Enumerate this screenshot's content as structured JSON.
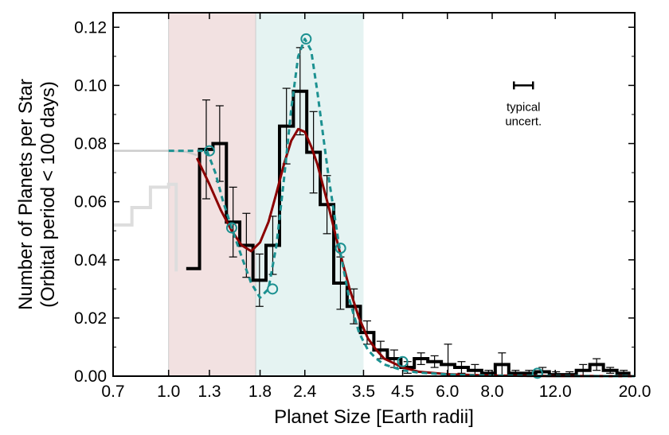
{
  "chart_data": {
    "type": "line",
    "title": "",
    "xlabel": "Planet Size [Earth radii]",
    "ylabel_lines": [
      "Number of Planets per Star",
      "(Orbital period < 100 days)"
    ],
    "x_scale": "log",
    "xlim": [
      0.7,
      20.0
    ],
    "ylim": [
      0.0,
      0.125
    ],
    "x_ticks": [
      {
        "value": 0.7,
        "label": "0.7"
      },
      {
        "value": 1.0,
        "label": "1.0"
      },
      {
        "value": 1.3,
        "label": "1.3"
      },
      {
        "value": 1.8,
        "label": "1.8"
      },
      {
        "value": 2.4,
        "label": "2.4"
      },
      {
        "value": 3.5,
        "label": "3.5"
      },
      {
        "value": 4.5,
        "label": "4.5"
      },
      {
        "value": 6.0,
        "label": "6.0"
      },
      {
        "value": 8.0,
        "label": "8.0"
      },
      {
        "value": 12.0,
        "label": "12.0"
      },
      {
        "value": 20.0,
        "label": "20.0"
      }
    ],
    "y_ticks": [
      {
        "value": 0.0,
        "label": "0.00"
      },
      {
        "value": 0.02,
        "label": "0.02"
      },
      {
        "value": 0.04,
        "label": "0.04"
      },
      {
        "value": 0.06,
        "label": "0.06"
      },
      {
        "value": 0.08,
        "label": "0.08"
      },
      {
        "value": 0.1,
        "label": "0.10"
      },
      {
        "value": 0.12,
        "label": "0.12"
      }
    ],
    "grid": false,
    "shaded_regions": [
      {
        "x0": 1.0,
        "x1": 1.75,
        "color": "#f2e1e1"
      },
      {
        "x0": 1.75,
        "x1": 3.5,
        "color": "#e5f3f2"
      }
    ],
    "histogram": {
      "color": "#000000",
      "edges": [
        1.12,
        1.22,
        1.33,
        1.45,
        1.58,
        1.72,
        1.87,
        2.04,
        2.23,
        2.43,
        2.65,
        2.89,
        3.15,
        3.43,
        3.74,
        4.08,
        4.45,
        4.85,
        5.29,
        5.77,
        6.29,
        6.86,
        7.48,
        8.16,
        8.9,
        9.71,
        10.59,
        11.55,
        12.6,
        13.74,
        14.99,
        16.35,
        17.84,
        19.46
      ],
      "values": [
        0.037,
        0.078,
        0.08,
        0.053,
        0.045,
        0.033,
        0.045,
        0.086,
        0.098,
        0.077,
        0.059,
        0.032,
        0.024,
        0.015,
        0.009,
        0.006,
        0.003,
        0.006,
        0.005,
        0.004,
        0.003,
        0.002,
        0.001,
        0.004,
        0.001,
        0.001,
        0.0015,
        0.0005,
        0.0005,
        0.002,
        0.004,
        0.002,
        0.001
      ],
      "errors": [
        0.0,
        0.017,
        0.013,
        0.012,
        0.011,
        0.009,
        0.01,
        0.013,
        0.015,
        0.014,
        0.01,
        0.009,
        0.006,
        0.004,
        0.003,
        0.003,
        0.002,
        0.002,
        0.002,
        0.007,
        0.002,
        0.002,
        0.001,
        0.004,
        0.001,
        0.001,
        0.0015,
        0.001,
        0.001,
        0.002,
        0.002,
        0.001,
        0.001
      ]
    },
    "gray_histogram": {
      "color": "#dddddd",
      "x": [
        0.7,
        0.7,
        0.79,
        0.79,
        0.89,
        0.89,
        1.0,
        1.0,
        1.05,
        1.05
      ],
      "y": [
        0.052,
        0.052,
        0.052,
        0.058,
        0.058,
        0.065,
        0.065,
        0.066,
        0.066,
        0.036
      ]
    },
    "gray_curve": {
      "color": "#cccccc",
      "x": [
        0.7,
        0.9,
        1.0,
        1.12,
        1.2
      ],
      "y": [
        0.0775,
        0.0775,
        0.0775,
        0.0772,
        0.076
      ]
    },
    "fit_solid": {
      "color": "#8b0000",
      "x": [
        1.2,
        1.3,
        1.4,
        1.5,
        1.6,
        1.7,
        1.8,
        1.9,
        2.0,
        2.1,
        2.2,
        2.3,
        2.4,
        2.5,
        2.6,
        2.8,
        3.0,
        3.2,
        3.4,
        3.6,
        3.8,
        4.0,
        4.5,
        5.0,
        6.0,
        7.0,
        8.0,
        10.0,
        12.0,
        15.0,
        20.0
      ],
      "y": [
        0.075,
        0.066,
        0.057,
        0.05,
        0.045,
        0.043,
        0.046,
        0.053,
        0.063,
        0.073,
        0.081,
        0.085,
        0.084,
        0.079,
        0.073,
        0.058,
        0.043,
        0.03,
        0.02,
        0.013,
        0.009,
        0.006,
        0.003,
        0.0015,
        0.0007,
        0.0004,
        0.0002,
        0.0001,
        5e-05,
        2e-05,
        0.0
      ],
      "stroke_width": 3
    },
    "fit_dashed": {
      "color": "#1c9191",
      "x": [
        1.0,
        1.1,
        1.2,
        1.28,
        1.35,
        1.42,
        1.5,
        1.6,
        1.7,
        1.8,
        1.9,
        2.0,
        2.1,
        2.2,
        2.3,
        2.4,
        2.5,
        2.6,
        2.8,
        3.0,
        3.2,
        3.4,
        3.6,
        3.8,
        4.0,
        4.5,
        5.0,
        6.0,
        7.0,
        8.0,
        10.0,
        12.0,
        15.0,
        20.0
      ],
      "y": [
        0.0775,
        0.0775,
        0.0775,
        0.0775,
        0.07,
        0.06,
        0.051,
        0.041,
        0.032,
        0.027,
        0.03,
        0.045,
        0.068,
        0.092,
        0.11,
        0.116,
        0.112,
        0.098,
        0.068,
        0.044,
        0.026,
        0.015,
        0.009,
        0.006,
        0.004,
        0.002,
        0.0012,
        0.0006,
        0.0003,
        0.0002,
        0.0001,
        5e-05,
        2e-05,
        0.0
      ]
    },
    "circle_markers": {
      "color": "#1c9191",
      "x": [
        1.3,
        1.5,
        1.95,
        2.42,
        3.02,
        4.5,
        10.7
      ],
      "y": [
        0.0775,
        0.051,
        0.03,
        0.116,
        0.044,
        0.005,
        0.001
      ]
    },
    "annotation": {
      "label_lines": [
        "typical",
        "uncert."
      ],
      "bar_x": [
        9.2,
        10.4
      ],
      "bar_y": 0.1
    }
  }
}
